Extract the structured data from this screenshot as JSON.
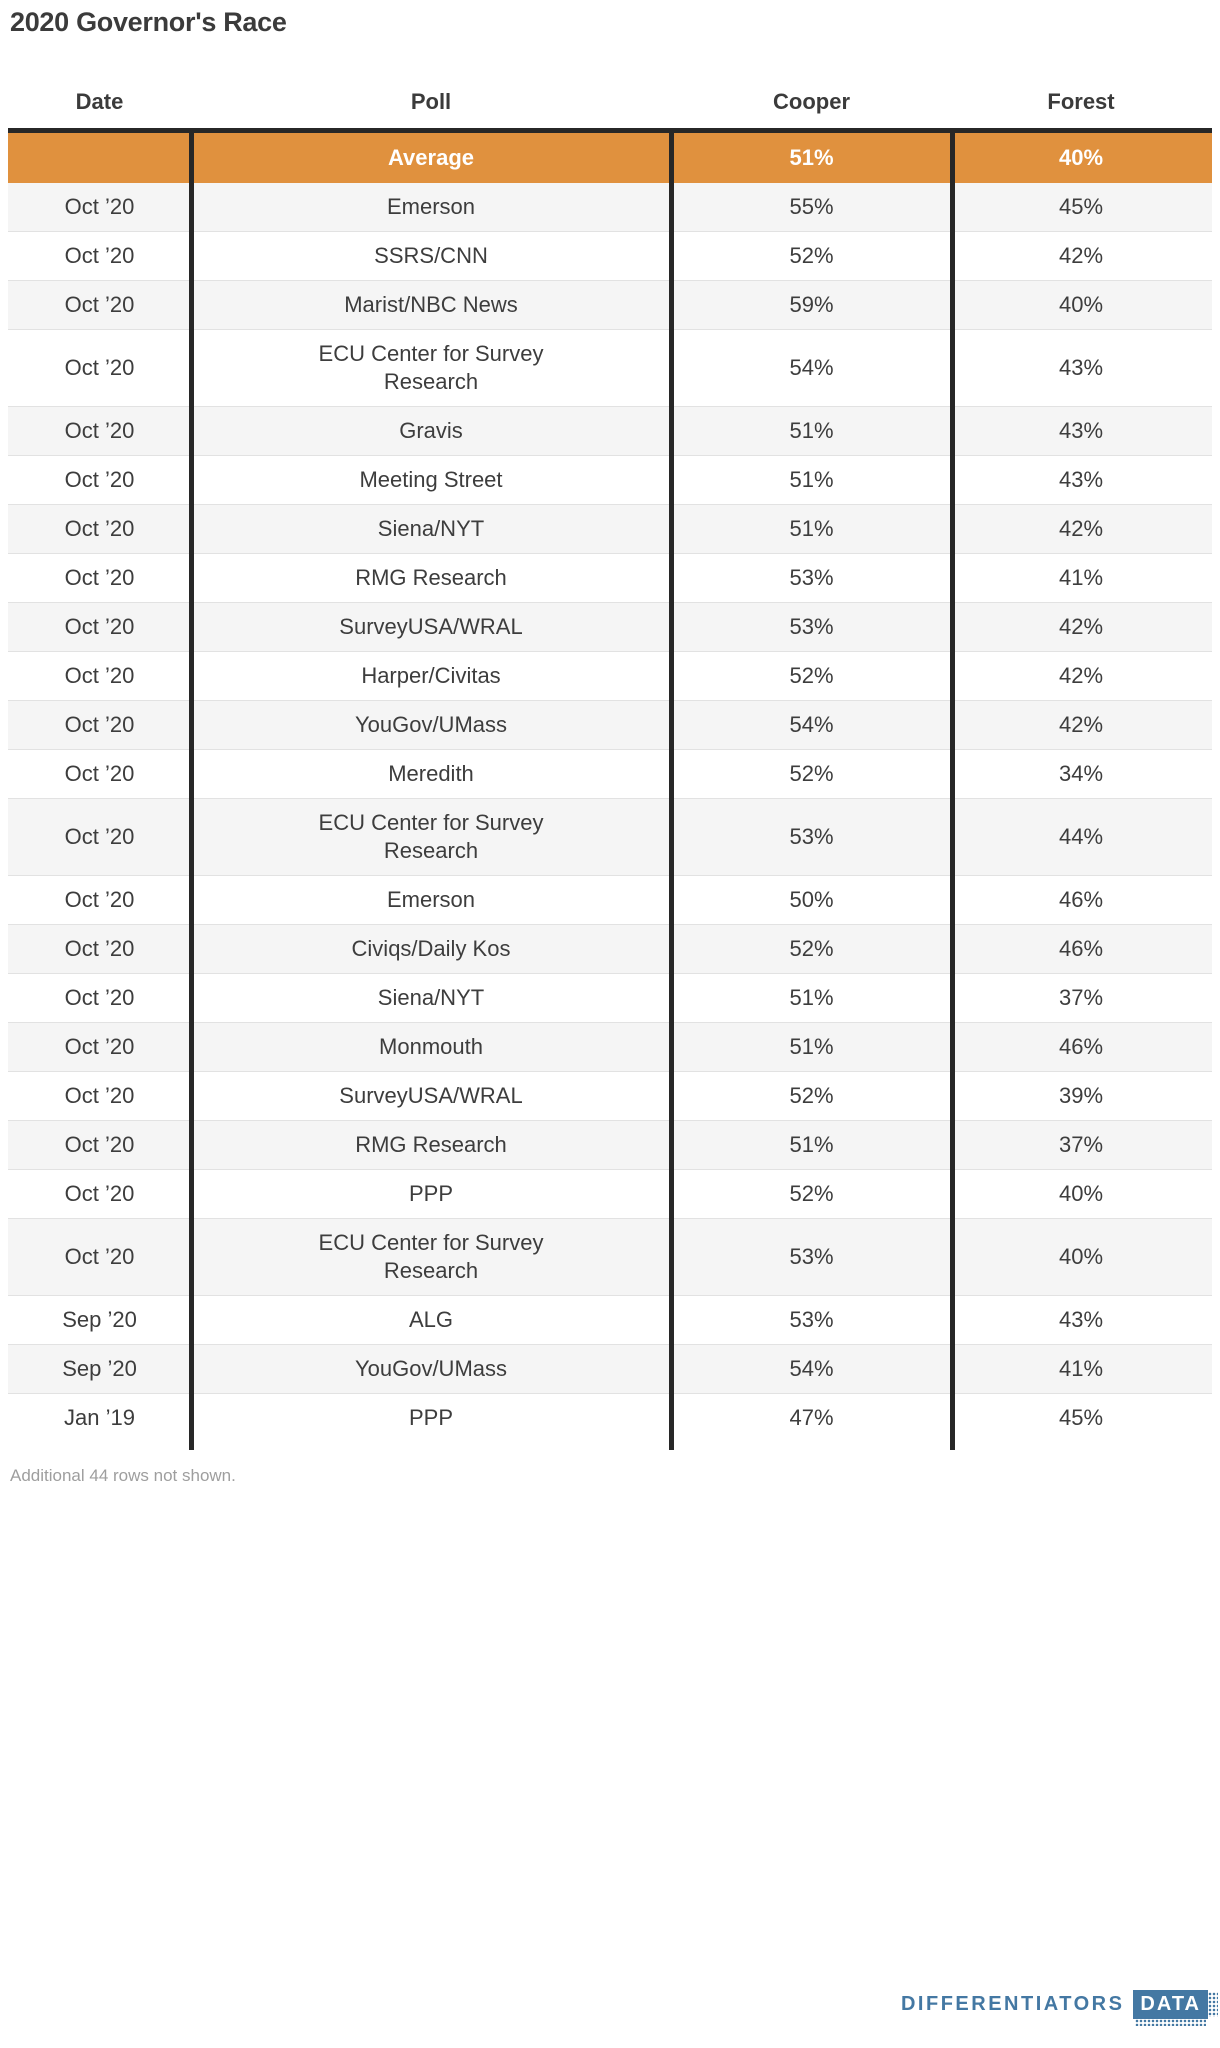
{
  "title": "2020 Governor's Race",
  "chart_data": {
    "type": "table",
    "title": "2020 Governor's Race",
    "columns": [
      "Date",
      "Poll",
      "Cooper",
      "Forest"
    ],
    "average_row": {
      "date": "",
      "poll": "Average",
      "cooper": "51%",
      "forest": "40%"
    },
    "rows": [
      {
        "date": "Oct ’20",
        "poll": "Emerson",
        "cooper": "55%",
        "forest": "45%"
      },
      {
        "date": "Oct ’20",
        "poll": "SSRS/CNN",
        "cooper": "52%",
        "forest": "42%"
      },
      {
        "date": "Oct ’20",
        "poll": "Marist/NBC News",
        "cooper": "59%",
        "forest": "40%"
      },
      {
        "date": "Oct ’20",
        "poll": "ECU Center for Survey Research",
        "cooper": "54%",
        "forest": "43%"
      },
      {
        "date": "Oct ’20",
        "poll": "Gravis",
        "cooper": "51%",
        "forest": "43%"
      },
      {
        "date": "Oct ’20",
        "poll": "Meeting Street",
        "cooper": "51%",
        "forest": "43%"
      },
      {
        "date": "Oct ’20",
        "poll": "Siena/NYT",
        "cooper": "51%",
        "forest": "42%"
      },
      {
        "date": "Oct ’20",
        "poll": "RMG Research",
        "cooper": "53%",
        "forest": "41%"
      },
      {
        "date": "Oct ’20",
        "poll": "SurveyUSA/WRAL",
        "cooper": "53%",
        "forest": "42%"
      },
      {
        "date": "Oct ’20",
        "poll": "Harper/Civitas",
        "cooper": "52%",
        "forest": "42%"
      },
      {
        "date": "Oct ’20",
        "poll": "YouGov/UMass",
        "cooper": "54%",
        "forest": "42%"
      },
      {
        "date": "Oct ’20",
        "poll": "Meredith",
        "cooper": "52%",
        "forest": "34%"
      },
      {
        "date": "Oct ’20",
        "poll": "ECU Center for Survey Research",
        "cooper": "53%",
        "forest": "44%"
      },
      {
        "date": "Oct ’20",
        "poll": "Emerson",
        "cooper": "50%",
        "forest": "46%"
      },
      {
        "date": "Oct ’20",
        "poll": "Civiqs/Daily Kos",
        "cooper": "52%",
        "forest": "46%"
      },
      {
        "date": "Oct ’20",
        "poll": "Siena/NYT",
        "cooper": "51%",
        "forest": "37%"
      },
      {
        "date": "Oct ’20",
        "poll": "Monmouth",
        "cooper": "51%",
        "forest": "46%"
      },
      {
        "date": "Oct ’20",
        "poll": "SurveyUSA/WRAL",
        "cooper": "52%",
        "forest": "39%"
      },
      {
        "date": "Oct ’20",
        "poll": "RMG Research",
        "cooper": "51%",
        "forest": "37%"
      },
      {
        "date": "Oct ’20",
        "poll": "PPP",
        "cooper": "52%",
        "forest": "40%"
      },
      {
        "date": "Oct ’20",
        "poll": "ECU Center for Survey Research",
        "cooper": "53%",
        "forest": "40%"
      },
      {
        "date": "Sep ’20",
        "poll": "ALG",
        "cooper": "53%",
        "forest": "43%"
      },
      {
        "date": "Sep ’20",
        "poll": "YouGov/UMass",
        "cooper": "54%",
        "forest": "41%"
      },
      {
        "date": "Jan ’19",
        "poll": "PPP",
        "cooper": "47%",
        "forest": "45%"
      }
    ],
    "footnote": "Additional 44 rows not shown."
  },
  "footer": {
    "note": "Additional 44 rows not shown.",
    "brand_name": "DIFFERENTIATORS",
    "brand_badge": "DATA"
  },
  "colors": {
    "accent_orange": "#E0913E",
    "row_alt": "#F5F5F5",
    "grid_black": "#272727",
    "separator": "#E2E2E2",
    "text_dark": "#3B3B3B",
    "text_body": "#3D3D3D",
    "footnote_gray": "#9E9E9E",
    "brand_blue": "#4478A3"
  }
}
